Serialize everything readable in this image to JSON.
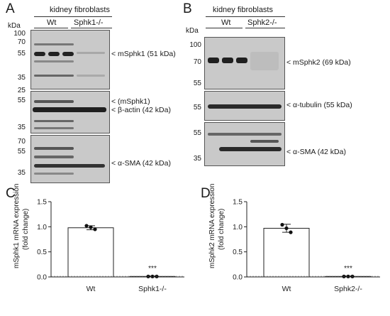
{
  "panel_a": {
    "letter": "A",
    "group_header": "kidney fibroblasts",
    "lanes": [
      "Wt",
      "Sphk1-/-"
    ],
    "kda_label": "kDa",
    "blot1": {
      "ticks": [
        "100",
        "70",
        "55",
        "35",
        "25"
      ],
      "labels": [
        "< mSphk1 (51 kDa)"
      ]
    },
    "blot2": {
      "ticks": [
        "55",
        "35"
      ],
      "labels": [
        "< (mSphk1)",
        "< β-actin (42 kDa)"
      ]
    },
    "blot3": {
      "ticks": [
        "70",
        "55",
        "35"
      ],
      "labels": [
        "< α-SMA (42 kDa)"
      ]
    }
  },
  "panel_b": {
    "letter": "B",
    "group_header": "kidney fibroblasts",
    "lanes": [
      "Wt",
      "Sphk2-/-"
    ],
    "kda_label": "kDa",
    "blot1": {
      "ticks": [
        "100",
        "70",
        "55"
      ],
      "labels": [
        "< mSphk2 (69 kDa)"
      ]
    },
    "blot2": {
      "ticks": [
        "55"
      ],
      "labels": [
        "< α-tubulin (55 kDa)"
      ]
    },
    "blot3": {
      "ticks": [
        "55",
        "35"
      ],
      "labels": [
        "< α-SMA (42 kDa)"
      ]
    }
  },
  "panel_c": {
    "letter": "C",
    "ylabel_line1": "mSphk1 mRNA expression",
    "ylabel_line2": "(fold change)",
    "yticks": [
      "0.0",
      "0.5",
      "1.0",
      "1.5"
    ],
    "significance": "***"
  },
  "panel_d": {
    "letter": "D",
    "ylabel_line1": "mSphk2 mRNA expression",
    "ylabel_line2": "(fold change)",
    "yticks": [
      "0.0",
      "0.5",
      "1.0",
      "1.5"
    ],
    "significance": "***"
  },
  "chart_data": [
    {
      "type": "bar",
      "panel": "C",
      "title": "",
      "categories": [
        "Wt",
        "Sphk1-/-"
      ],
      "values": [
        0.98,
        0.01
      ],
      "error": [
        0.04,
        0.01
      ],
      "points": [
        [
          1.02,
          0.99,
          0.95
        ],
        [
          0.01,
          0.01,
          0.01
        ]
      ],
      "ylabel": "mSphk1 mRNA expression (fold change)",
      "ylim": [
        0,
        1.5
      ],
      "grid": false
    },
    {
      "type": "bar",
      "panel": "D",
      "title": "",
      "categories": [
        "Wt",
        "Sphk2-/-"
      ],
      "values": [
        0.97,
        0.01
      ],
      "error": [
        0.08,
        0.01
      ],
      "points": [
        [
          1.04,
          0.97,
          0.89
        ],
        [
          0.01,
          0.01,
          0.01
        ]
      ],
      "ylabel": "mSphk2 mRNA expression (fold change)",
      "ylim": [
        0,
        1.5
      ],
      "grid": false
    }
  ]
}
